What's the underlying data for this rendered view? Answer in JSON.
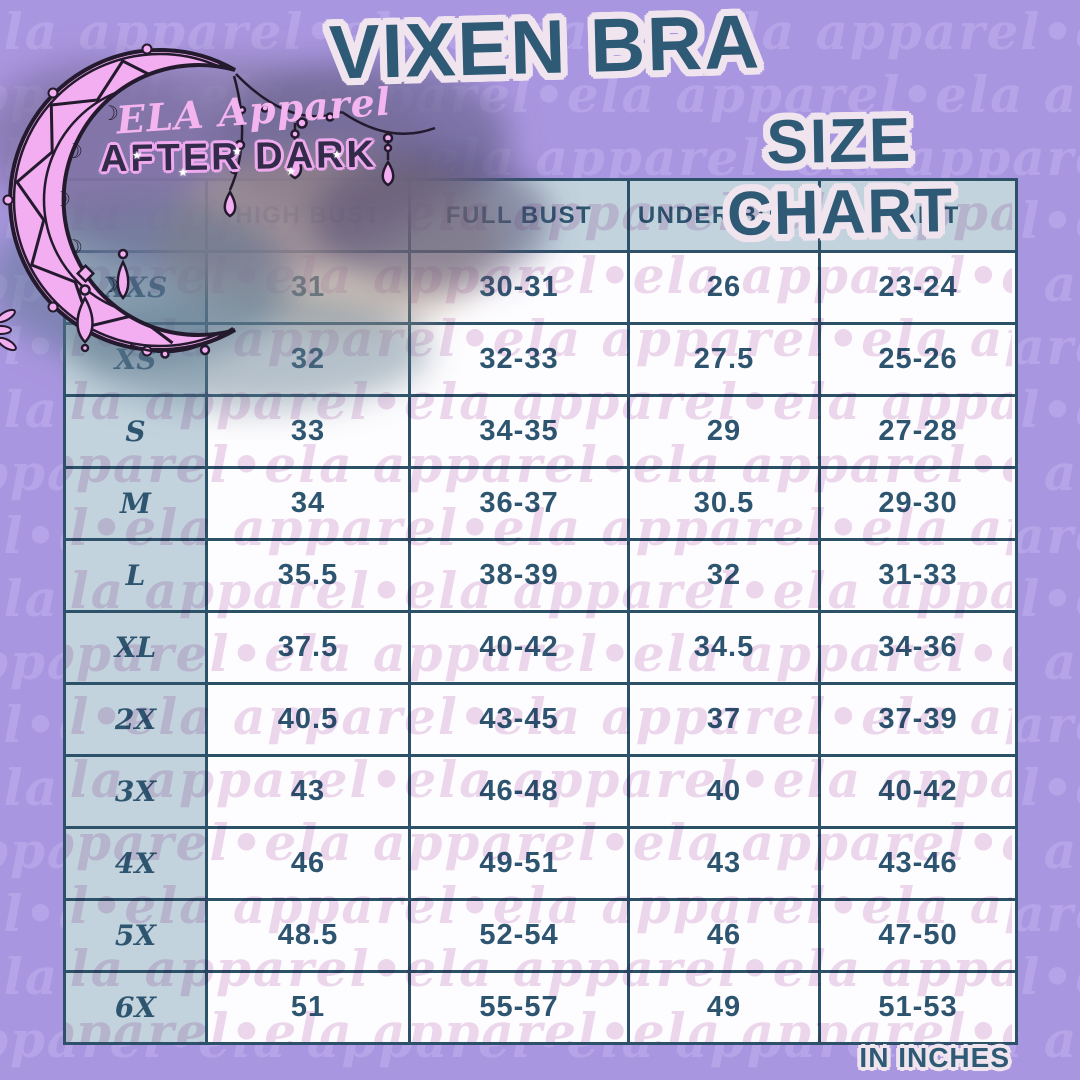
{
  "brand": {
    "script_name": "ELA Apparel",
    "sub_name": "AFTER DARK"
  },
  "title": {
    "line1": "VIXEN BRA",
    "line2": "SIZE CHART"
  },
  "footer": {
    "units": "IN INCHES"
  },
  "watermark": {
    "text": "ela apparel•ela apparel•ela apparel•ela apparel•ela apparel•ela apparel•ela apparel•ela apparel"
  },
  "icons": {
    "sparkle": "★"
  },
  "colors": {
    "background_purple": "#a996e0",
    "watermark_on_purple": "#b9a8e9",
    "watermark_on_white": "#eed9ec",
    "table_border": "#2d5168",
    "header_fill": "#c3d3dd",
    "cell_fill": "#fdfcfe",
    "ink_teal": "#2e5570",
    "title_fill": "#2f5a75",
    "title_outline": "#f0e4ee",
    "moon_pink": "#f3adf1",
    "brand_pink": "#f4b4ef",
    "brand_dark": "#332b4a"
  },
  "table": {
    "columns": [
      "HIGH BUST",
      "FULL BUST",
      "UNDER BUST",
      "WAIST"
    ],
    "rows": [
      {
        "size": "XXS",
        "high_bust": "31",
        "full_bust": "30-31",
        "under_bust": "26",
        "waist": "23-24"
      },
      {
        "size": "XS",
        "high_bust": "32",
        "full_bust": "32-33",
        "under_bust": "27.5",
        "waist": "25-26"
      },
      {
        "size": "S",
        "high_bust": "33",
        "full_bust": "34-35",
        "under_bust": "29",
        "waist": "27-28"
      },
      {
        "size": "M",
        "high_bust": "34",
        "full_bust": "36-37",
        "under_bust": "30.5",
        "waist": "29-30"
      },
      {
        "size": "L",
        "high_bust": "35.5",
        "full_bust": "38-39",
        "under_bust": "32",
        "waist": "31-33"
      },
      {
        "size": "XL",
        "high_bust": "37.5",
        "full_bust": "40-42",
        "under_bust": "34.5",
        "waist": "34-36"
      },
      {
        "size": "2X",
        "high_bust": "40.5",
        "full_bust": "43-45",
        "under_bust": "37",
        "waist": "37-39"
      },
      {
        "size": "3X",
        "high_bust": "43",
        "full_bust": "46-48",
        "under_bust": "40",
        "waist": "40-42"
      },
      {
        "size": "4X",
        "high_bust": "46",
        "full_bust": "49-51",
        "under_bust": "43",
        "waist": "43-46"
      },
      {
        "size": "5X",
        "high_bust": "48.5",
        "full_bust": "52-54",
        "under_bust": "46",
        "waist": "47-50"
      },
      {
        "size": "6X",
        "high_bust": "51",
        "full_bust": "55-57",
        "under_bust": "49",
        "waist": "51-53"
      }
    ]
  }
}
